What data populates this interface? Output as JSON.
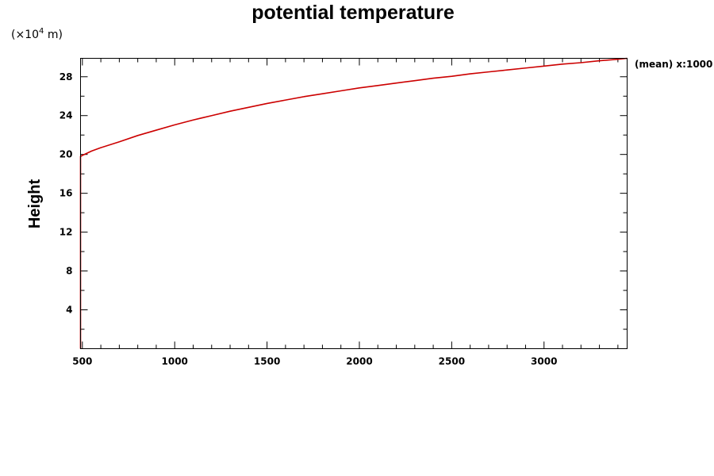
{
  "chart_data": {
    "type": "line",
    "title": "potential temperature",
    "unit_label": {
      "prefix": "(×10",
      "exponent": "4",
      "suffix": " m)"
    },
    "ylabel": "Height",
    "xlabel": "",
    "xlim": [
      490,
      3450
    ],
    "ylim": [
      0,
      29.9
    ],
    "x_ticks": [
      500,
      1000,
      1500,
      2000,
      2500,
      3000
    ],
    "x_minor_step": 100,
    "y_ticks": [
      4,
      8,
      12,
      16,
      20,
      24,
      28
    ],
    "y_minor_step": 2,
    "annotation": "(mean) x:1000",
    "grid": false,
    "series": [
      {
        "color": "#cc0000",
        "points": [
          [
            490,
            0
          ],
          [
            490,
            19.8
          ],
          [
            500,
            19.9
          ],
          [
            550,
            20.35
          ],
          [
            600,
            20.7
          ],
          [
            700,
            21.3
          ],
          [
            800,
            21.95
          ],
          [
            900,
            22.5
          ],
          [
            1000,
            23.05
          ],
          [
            1100,
            23.55
          ],
          [
            1200,
            24.0
          ],
          [
            1300,
            24.45
          ],
          [
            1400,
            24.85
          ],
          [
            1500,
            25.25
          ],
          [
            1600,
            25.6
          ],
          [
            1700,
            25.95
          ],
          [
            1800,
            26.25
          ],
          [
            1900,
            26.55
          ],
          [
            2000,
            26.85
          ],
          [
            2100,
            27.1
          ],
          [
            2200,
            27.35
          ],
          [
            2300,
            27.6
          ],
          [
            2400,
            27.85
          ],
          [
            2500,
            28.05
          ],
          [
            2600,
            28.3
          ],
          [
            2700,
            28.5
          ],
          [
            2800,
            28.7
          ],
          [
            2900,
            28.9
          ],
          [
            3000,
            29.1
          ],
          [
            3100,
            29.3
          ],
          [
            3200,
            29.45
          ],
          [
            3300,
            29.65
          ],
          [
            3400,
            29.8
          ],
          [
            3450,
            29.9
          ]
        ]
      }
    ]
  }
}
